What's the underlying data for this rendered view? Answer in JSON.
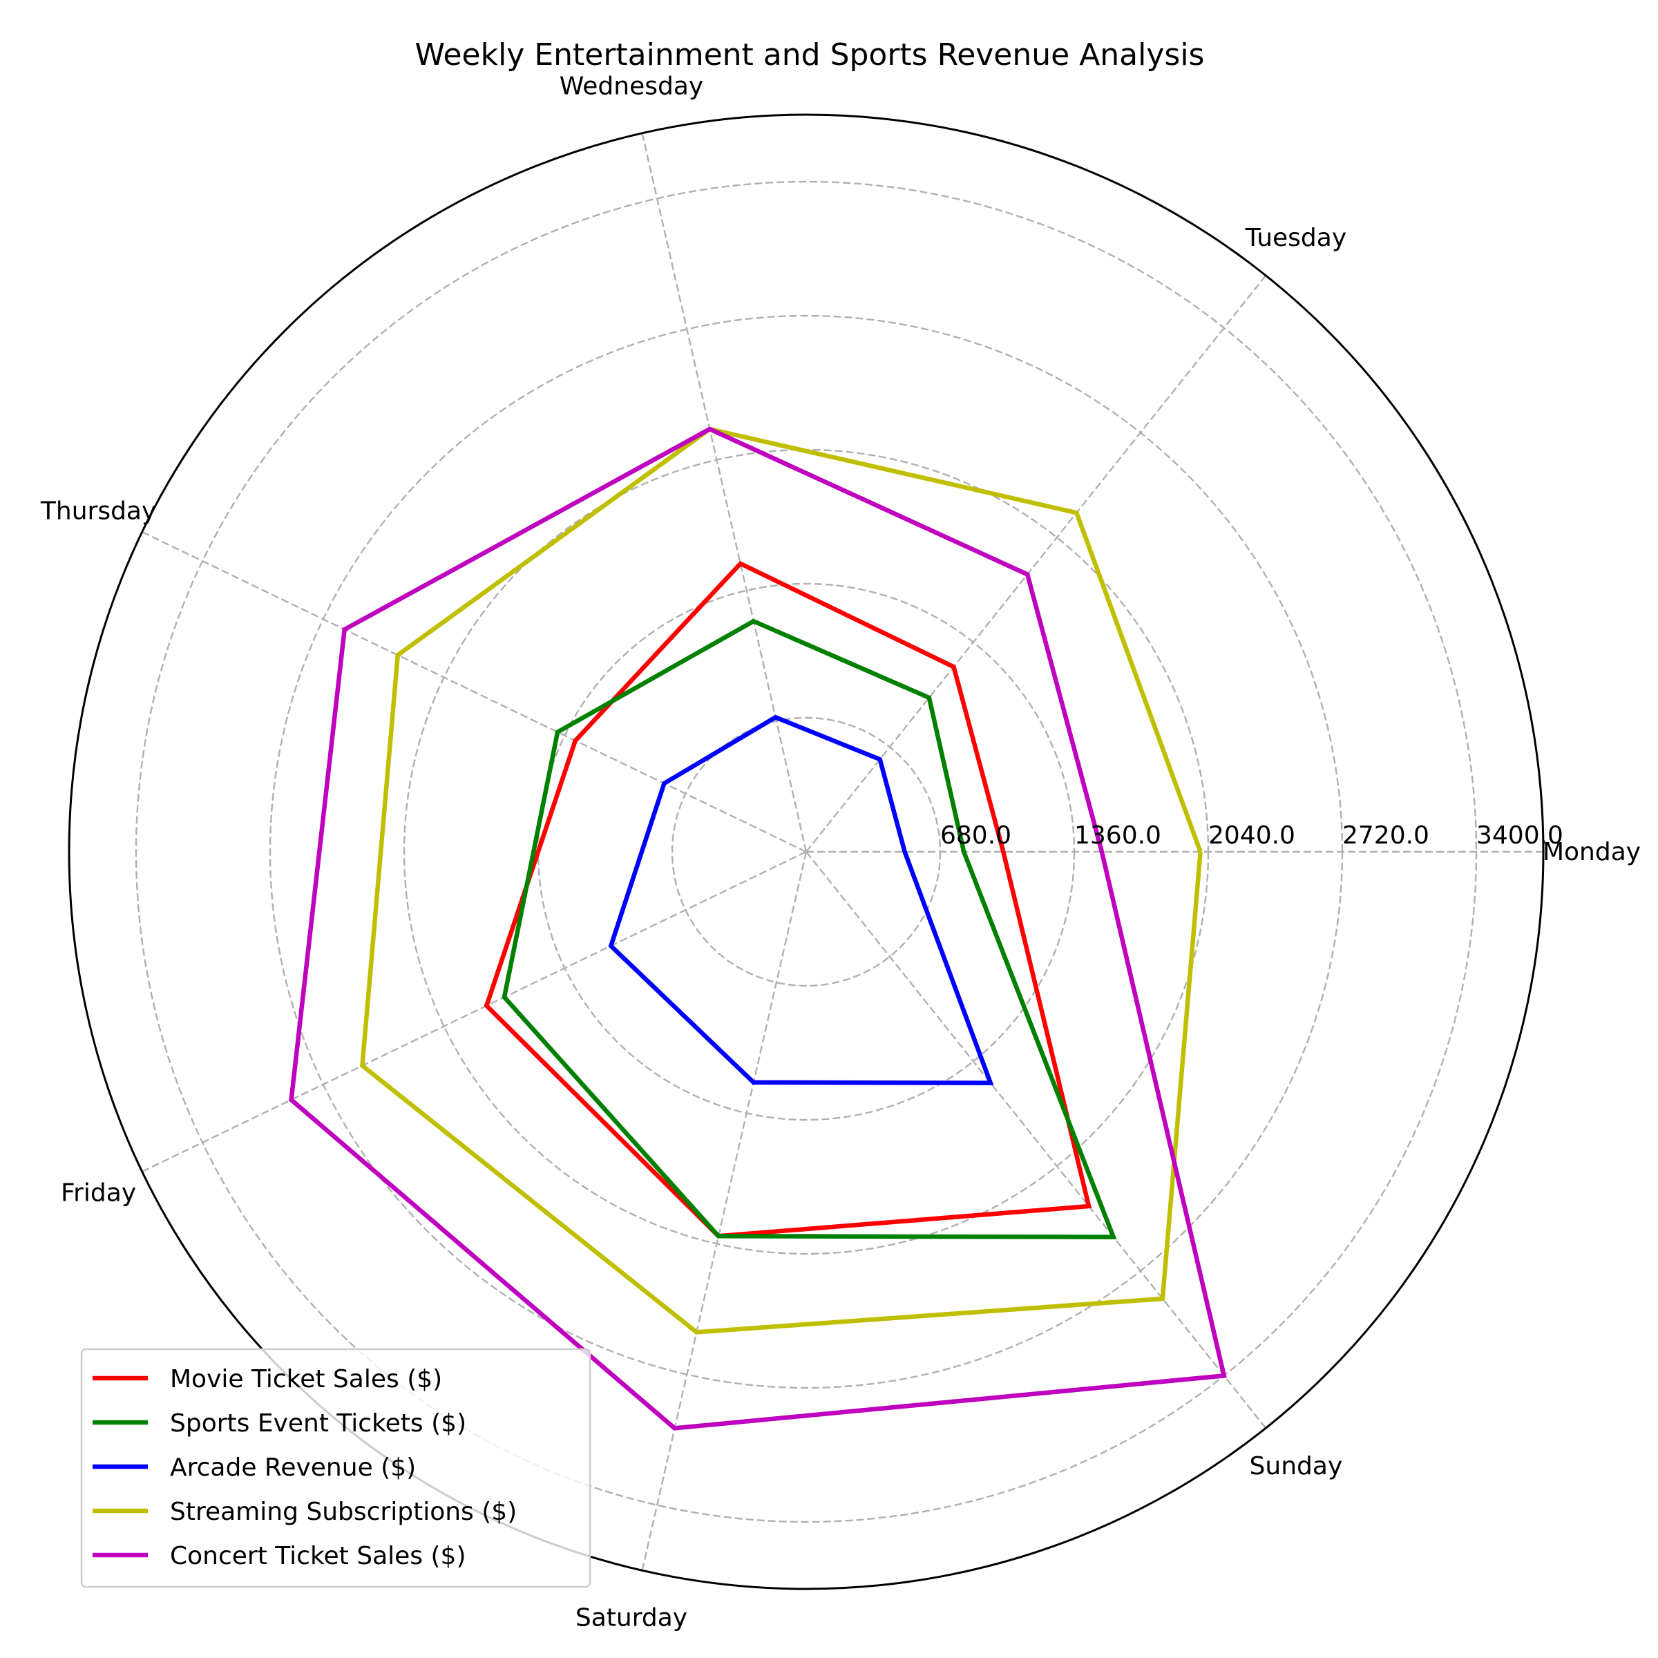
{
  "chart_data": {
    "type": "radar",
    "title": "Weekly Entertainment and Sports Revenue Analysis",
    "categories": [
      "Monday",
      "Tuesday",
      "Wednesday",
      "Thursday",
      "Friday",
      "Saturday",
      "Sunday"
    ],
    "rlim": [
      0,
      3740
    ],
    "rticks": [
      680,
      1360,
      2040,
      2720,
      3400
    ],
    "rtick_labels": [
      "680.0",
      "1360.0",
      "2040.0",
      "2720.0",
      "3400.0"
    ],
    "grid": true,
    "legend_position": "lower-left",
    "series": [
      {
        "name": "Movie Ticket Sales ($)",
        "color": "#ff0000",
        "values": [
          1000,
          1200,
          1500,
          1300,
          1800,
          2000,
          2300
        ]
      },
      {
        "name": "Sports Event Tickets ($)",
        "color": "#008000",
        "values": [
          800,
          1000,
          1200,
          1400,
          1700,
          2000,
          2500
        ]
      },
      {
        "name": "Arcade Revenue ($)",
        "color": "#0000ff",
        "values": [
          500,
          600,
          700,
          800,
          1100,
          1200,
          1500
        ]
      },
      {
        "name": "Streaming Subscriptions ($)",
        "color": "#bfbf00",
        "values": [
          2000,
          2200,
          2200,
          2300,
          2500,
          2500,
          2900
        ]
      },
      {
        "name": "Concert Ticket Sales ($)",
        "color": "#bf00bf",
        "values": [
          1500,
          1800,
          2200,
          2600,
          2900,
          3000,
          3400
        ]
      }
    ]
  }
}
